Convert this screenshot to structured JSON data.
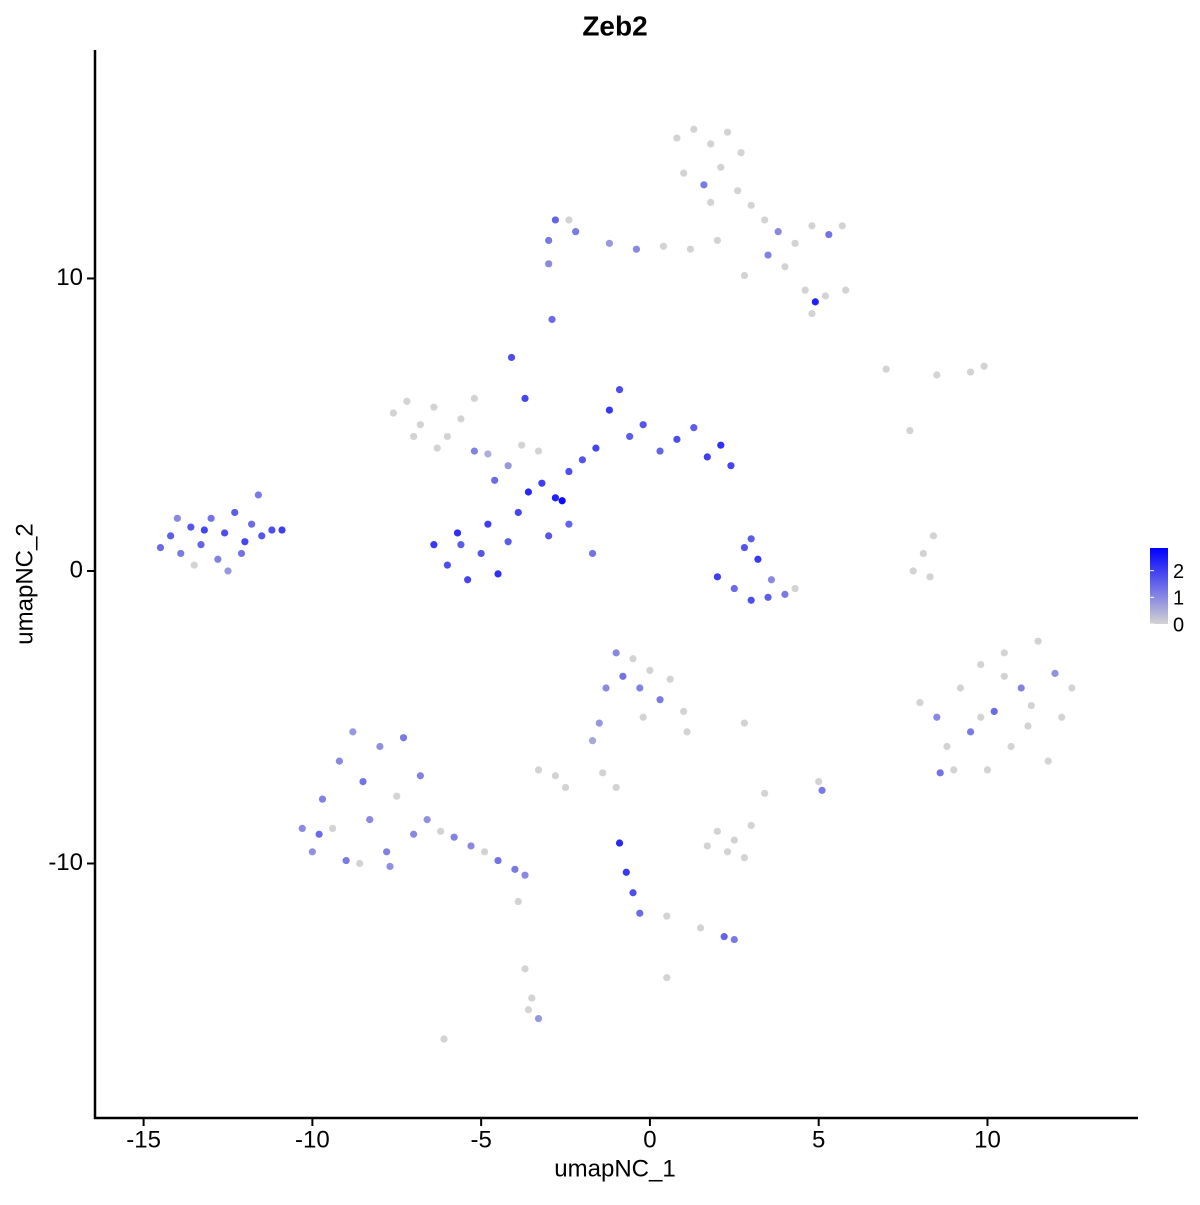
{
  "chart_data": {
    "type": "scatter",
    "title": "Zeb2",
    "xlabel": "umapNC_1",
    "ylabel": "umapNC_2",
    "xlim": [
      -16.44,
      14.46
    ],
    "ylim": [
      -18.7,
      17.81
    ],
    "xticks": [
      -15,
      -10,
      -5,
      0,
      5,
      10
    ],
    "yticks": [
      -10,
      0,
      10
    ],
    "low_color": "#d3d3d3",
    "high_color": "#0000ff",
    "colorlim": [
      0,
      2.85
    ],
    "colorticks": [
      0,
      1,
      2
    ],
    "x": [
      -14.5,
      -14.2,
      -13.9,
      -13.6,
      -13.3,
      -13.0,
      -12.8,
      -12.6,
      -12.3,
      -12.0,
      -11.8,
      -11.5,
      -11.2,
      -10.9,
      -11.6,
      -12.5,
      -13.5,
      -14.0,
      -12.1,
      -13.2,
      -6.4,
      -6.0,
      -5.7,
      -5.4,
      -5.0,
      -4.8,
      -4.5,
      -4.2,
      -3.9,
      -3.6,
      -3.2,
      -2.8,
      -2.4,
      -2.0,
      -1.6,
      -1.2,
      -0.9,
      -0.6,
      -0.2,
      0.3,
      0.8,
      1.3,
      1.7,
      2.1,
      2.4,
      -4.6,
      -5.2,
      -3.8,
      -4.1,
      -3.7,
      -2.4,
      -1.7,
      -3.0,
      -5.6,
      -2.6,
      -7.6,
      -7.2,
      -6.8,
      -6.4,
      -6.0,
      -5.6,
      -5.2,
      -7.0,
      -6.3,
      -4.8,
      -4.2,
      -3.3,
      2.0,
      2.5,
      3.0,
      3.5,
      4.0,
      2.8,
      3.2,
      3.0,
      3.6,
      4.3,
      0.8,
      1.3,
      1.8,
      2.3,
      2.7,
      1.0,
      1.6,
      2.1,
      2.6,
      3.0,
      3.4,
      3.8,
      4.3,
      4.8,
      5.3,
      5.7,
      4.0,
      4.6,
      5.2,
      5.8,
      4.9,
      4.8,
      2.0,
      1.2,
      0.4,
      -0.4,
      -1.2,
      -2.2,
      -2.8,
      -3.0,
      -3.0,
      -2.9,
      -2.4,
      2.8,
      3.5,
      1.8,
      7.0,
      8.5,
      9.5,
      9.9,
      7.7,
      7.8,
      8.1,
      8.4,
      8.3,
      8.0,
      8.5,
      8.8,
      9.2,
      9.5,
      9.8,
      10.0,
      10.2,
      10.5,
      10.7,
      11.0,
      11.2,
      11.5,
      11.8,
      12.0,
      12.2,
      12.5,
      8.6,
      9.0,
      10.5,
      11.3,
      9.8,
      -1.0,
      -0.5,
      -0.8,
      -0.3,
      0.0,
      0.3,
      0.6,
      -0.2,
      1.0,
      1.1,
      -1.3,
      -1.5,
      -1.7,
      2.8,
      -3.3,
      -2.8,
      -2.5,
      -1.4,
      -1.0,
      5.0,
      5.1,
      3.4,
      2.0,
      2.5,
      3.0,
      2.3,
      1.7,
      2.8,
      -0.9,
      -0.7,
      -0.5,
      -0.3,
      0.5,
      1.5,
      2.2,
      2.5,
      -3.9,
      -3.7,
      -3.5,
      -3.3,
      -3.6,
      0.5,
      -6.1,
      -10.3,
      -10.0,
      -9.7,
      -9.4,
      -9.2,
      -9.0,
      -8.8,
      -8.5,
      -8.3,
      -8.0,
      -7.8,
      -7.5,
      -7.3,
      -7.0,
      -6.6,
      -6.2,
      -5.8,
      -5.3,
      -4.9,
      -4.5,
      -4.0,
      -3.7,
      -9.8,
      -8.6,
      -7.7,
      -6.8
    ],
    "y": [
      0.8,
      1.2,
      0.6,
      1.5,
      0.9,
      1.8,
      0.4,
      1.3,
      2.0,
      1.0,
      1.6,
      1.2,
      1.4,
      1.4,
      2.6,
      0.0,
      0.2,
      1.8,
      0.6,
      1.4,
      0.9,
      0.2,
      1.3,
      -0.3,
      0.6,
      1.6,
      -0.1,
      1.0,
      2.0,
      2.7,
      3.0,
      2.5,
      3.4,
      3.8,
      4.2,
      5.5,
      6.2,
      4.6,
      5.0,
      4.1,
      4.5,
      4.9,
      3.9,
      4.3,
      3.6,
      3.1,
      4.1,
      4.3,
      7.3,
      5.9,
      1.6,
      0.6,
      1.2,
      0.9,
      2.4,
      5.4,
      5.8,
      5.0,
      5.6,
      4.6,
      5.2,
      5.9,
      4.6,
      4.2,
      4.0,
      3.6,
      4.1,
      -0.2,
      -0.6,
      -1.0,
      -0.9,
      -0.8,
      0.8,
      0.4,
      1.1,
      -0.3,
      -0.6,
      14.8,
      15.1,
      14.6,
      15.0,
      14.3,
      13.6,
      13.2,
      13.8,
      13.0,
      12.5,
      12.0,
      11.6,
      11.2,
      11.8,
      11.5,
      11.8,
      10.4,
      9.6,
      9.4,
      9.6,
      9.2,
      8.8,
      11.3,
      11.0,
      11.1,
      11.0,
      11.2,
      11.6,
      12.0,
      11.3,
      10.5,
      8.6,
      12.0,
      10.1,
      10.8,
      12.6,
      6.9,
      6.7,
      6.8,
      7.0,
      4.8,
      0,
      0.6,
      1.2,
      -0.2,
      -4.5,
      -5.0,
      -6.0,
      -4.0,
      -5.5,
      -3.2,
      -6.8,
      -4.8,
      -2.8,
      -6.0,
      -4.0,
      -5.3,
      -2.4,
      -6.5,
      -3.5,
      -5.0,
      -4.0,
      -6.9,
      -6.8,
      -3.6,
      -4.6,
      -5.0,
      -2.8,
      -3.0,
      -3.6,
      -4.0,
      -3.4,
      -4.4,
      -3.7,
      -5.0,
      -4.8,
      -5.5,
      -4.0,
      -5.2,
      -5.8,
      -5.2,
      -6.8,
      -7.0,
      -7.4,
      -6.9,
      -7.4,
      -7.2,
      -7.5,
      -7.6,
      -8.9,
      -9.2,
      -8.7,
      -9.6,
      -9.4,
      -9.8,
      -9.3,
      -10.3,
      -11.0,
      -11.7,
      -11.8,
      -12.2,
      -12.5,
      -12.6,
      -11.3,
      -13.6,
      -14.6,
      -15.3,
      -15.0,
      -13.9,
      -16.0,
      -8.8,
      -9.6,
      -7.8,
      -8.8,
      -6.5,
      -9.9,
      -5.5,
      -7.2,
      -8.5,
      -6.0,
      -9.6,
      -7.7,
      -5.7,
      -9.0,
      -8.5,
      -8.9,
      -9.1,
      -9.4,
      -9.6,
      -9.9,
      -10.2,
      -10.4,
      -9.0,
      -10.0,
      -10.1,
      -7.0
    ],
    "values": [
      1.4,
      1.6,
      1.2,
      1.7,
      1.5,
      1.3,
      1.1,
      1.8,
      1.6,
      1.9,
      1.4,
      1.7,
      1.8,
      2.0,
      1.2,
      0.8,
      0,
      1.0,
      1.3,
      1.9,
      2.1,
      1.8,
      2.2,
      1.9,
      1.7,
      2.0,
      2.2,
      1.6,
      1.9,
      2.3,
      2.0,
      2.4,
      1.8,
      1.7,
      1.9,
      2.1,
      1.8,
      1.6,
      1.7,
      1.5,
      1.8,
      1.6,
      2.0,
      2.2,
      1.9,
      1.4,
      1.1,
      0,
      1.8,
      1.9,
      1.5,
      1.3,
      1.7,
      1.6,
      2.7,
      0,
      0,
      0,
      0,
      0,
      0,
      0,
      0,
      0,
      0.5,
      0.8,
      0,
      2.0,
      1.4,
      1.8,
      1.6,
      1.2,
      1.7,
      2.1,
      1.6,
      1.0,
      0,
      0,
      0,
      0,
      0,
      0,
      0,
      1.2,
      0,
      0,
      0,
      0,
      1.0,
      0,
      0,
      1.3,
      0,
      0,
      0,
      0,
      0,
      2.4,
      0,
      0,
      0,
      0,
      1.0,
      0.8,
      1.2,
      1.5,
      1.2,
      1.0,
      1.4,
      0,
      0,
      1.1,
      0,
      0,
      0,
      0,
      0,
      0,
      0,
      0,
      0,
      0,
      0,
      1.0,
      0,
      0,
      1.2,
      0,
      0,
      1.4,
      0,
      0,
      1.1,
      0,
      0,
      0,
      0.9,
      0,
      0,
      1.3,
      0,
      0,
      0,
      0,
      1.0,
      0,
      1.3,
      1.1,
      0,
      1.2,
      0,
      0,
      0,
      0,
      1.0,
      0.8,
      0.6,
      0,
      0,
      0,
      0,
      0,
      0,
      0,
      1.2,
      0,
      0,
      0,
      0,
      0,
      0,
      0,
      2.3,
      2.1,
      1.8,
      1.4,
      0,
      0,
      1.5,
      1.2,
      0,
      0,
      0,
      0.8,
      0,
      0,
      0,
      1.0,
      0.9,
      1.1,
      0,
      1.0,
      1.2,
      0.8,
      1.3,
      1.0,
      0.9,
      1.1,
      0,
      1.2,
      1.0,
      0.9,
      0,
      1.1,
      1.0,
      0,
      1.3,
      1.2,
      1.0,
      1.4,
      0,
      0.9,
      1.1
    ]
  }
}
